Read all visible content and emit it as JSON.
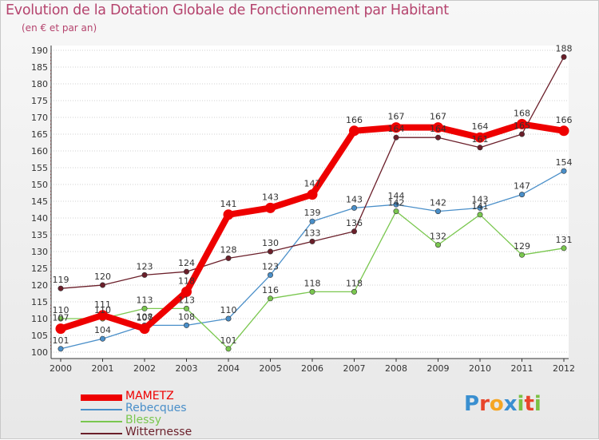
{
  "title": "Evolution de la Dotation Globale de Fonctionnement par Habitant",
  "subtitle": "(en € et par an)",
  "logo": {
    "text": "Proxiti",
    "letter_colors": [
      "#3a8fd0",
      "#e8452a",
      "#f5a623",
      "#3a8fd0",
      "#7ac143",
      "#e8452a",
      "#7ac143"
    ]
  },
  "chart_data": {
    "type": "line",
    "x": [
      2000,
      2001,
      2002,
      2003,
      2004,
      2005,
      2006,
      2007,
      2008,
      2009,
      2010,
      2011,
      2012
    ],
    "xticks": [
      "2000",
      "2001",
      "2002",
      "2003",
      "2004",
      "2005",
      "2006",
      "2007",
      "2008",
      "2009",
      "2010",
      "2011",
      "2012"
    ],
    "ylim": [
      100,
      190
    ],
    "yticks": [
      100,
      105,
      110,
      115,
      120,
      125,
      130,
      135,
      140,
      145,
      150,
      155,
      160,
      165,
      170,
      175,
      180,
      185,
      190
    ],
    "grid": "horizontal dotted",
    "legend_position": "bottom-left",
    "series": [
      {
        "name": "MAMETZ",
        "color": "#ee0000",
        "bold": true,
        "values": [
          107,
          111,
          107,
          118,
          141,
          143,
          147,
          166,
          167,
          167,
          164,
          168,
          166
        ]
      },
      {
        "name": "Rebecques",
        "color": "#4a8fc9",
        "bold": false,
        "values": [
          101,
          104,
          108,
          108,
          110,
          123,
          139,
          143,
          144,
          142,
          143,
          147,
          154
        ]
      },
      {
        "name": "Blessy",
        "color": "#7ac74f",
        "bold": false,
        "values": [
          110,
          110,
          113,
          113,
          101,
          116,
          118,
          118,
          142,
          132,
          141,
          129,
          131
        ]
      },
      {
        "name": "Witternesse",
        "color": "#6b1f2a",
        "bold": false,
        "values": [
          119,
          120,
          123,
          124,
          128,
          130,
          133,
          136,
          164,
          164,
          161,
          165,
          188
        ]
      }
    ]
  }
}
